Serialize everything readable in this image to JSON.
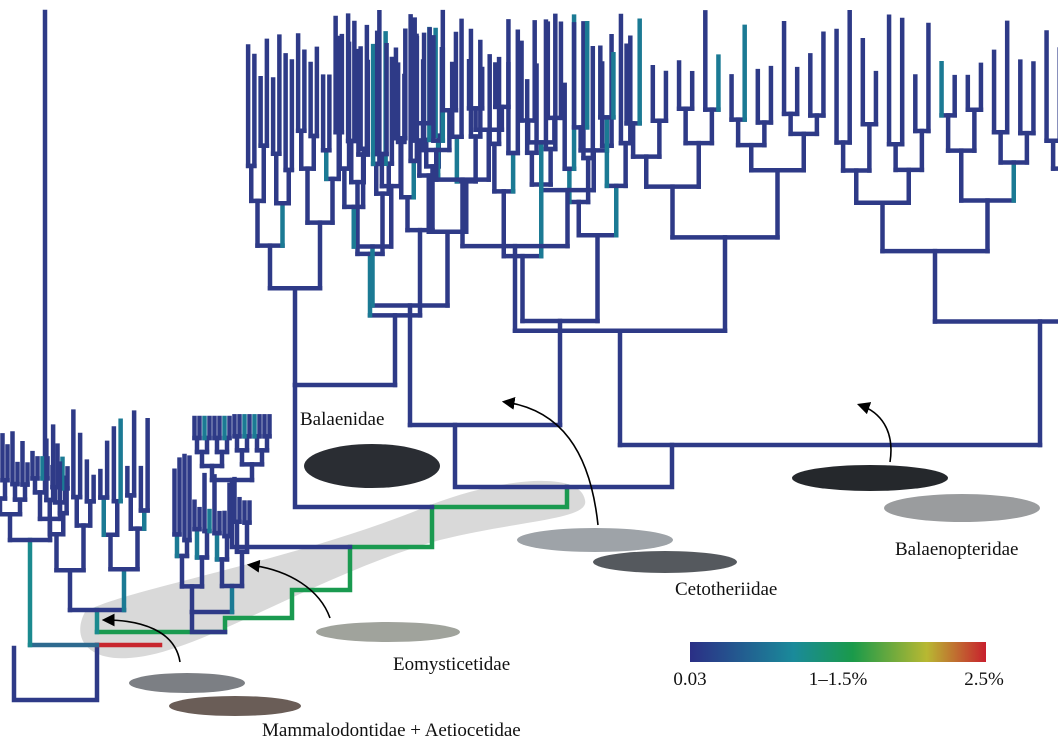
{
  "clades": {
    "balaenidae": "Balaenidae",
    "cetotheriidae": "Cetotheriidae",
    "balaenopteridae": "Balaenopteridae",
    "eomysticetidae": "Eomysticetidae",
    "basal": "Mammalodontidae + Aetiocetidae"
  },
  "colorbar": {
    "labels": [
      "0.03",
      "1–1.5%",
      "2.5%"
    ]
  }
}
